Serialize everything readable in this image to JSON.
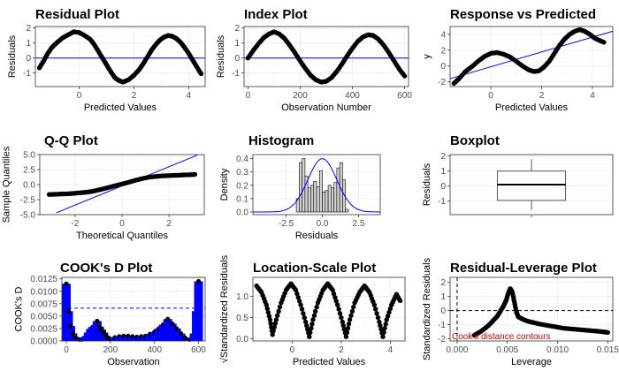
{
  "colors": {
    "points": "#000000",
    "ref_line": "#0000ff",
    "bar_fill": "#0000ff",
    "hist_fill": "#d3d3d3",
    "contour_text": "#cc0000",
    "grid_major": "#ebebeb",
    "grid_minor": "#f4f4f4",
    "panel_border": "#333333"
  },
  "chart_data": [
    {
      "id": "residual",
      "type": "scatter",
      "title": "Residual Plot",
      "xlabel": "Predicted Values",
      "ylabel": "Residuals",
      "xlim": [
        -1.6,
        4.6
      ],
      "ylim": [
        -1.9,
        2.1
      ],
      "xticks": [
        0,
        2,
        4
      ],
      "yticks": [
        -1,
        0,
        1,
        2
      ],
      "hline": 0,
      "grid": true,
      "points": [
        [
          -1.45,
          -0.65
        ],
        [
          -1.3,
          -0.2
        ],
        [
          -1.15,
          0.3
        ],
        [
          -1.0,
          0.7
        ],
        [
          -0.8,
          1.05
        ],
        [
          -0.6,
          1.35
        ],
        [
          -0.4,
          1.55
        ],
        [
          -0.2,
          1.75
        ],
        [
          0.0,
          1.7
        ],
        [
          0.2,
          1.5
        ],
        [
          0.4,
          1.25
        ],
        [
          0.55,
          0.9
        ],
        [
          0.7,
          0.45
        ],
        [
          0.85,
          0.0
        ],
        [
          1.0,
          -0.45
        ],
        [
          1.15,
          -0.9
        ],
        [
          1.3,
          -1.3
        ],
        [
          1.45,
          -1.5
        ],
        [
          1.6,
          -1.6
        ],
        [
          1.8,
          -1.45
        ],
        [
          2.0,
          -1.15
        ],
        [
          2.2,
          -0.75
        ],
        [
          2.35,
          -0.35
        ],
        [
          2.5,
          0.1
        ],
        [
          2.65,
          0.55
        ],
        [
          2.8,
          0.9
        ],
        [
          2.95,
          1.2
        ],
        [
          3.1,
          1.4
        ],
        [
          3.25,
          1.5
        ],
        [
          3.4,
          1.45
        ],
        [
          3.55,
          1.3
        ],
        [
          3.7,
          1.05
        ],
        [
          3.85,
          0.7
        ],
        [
          4.0,
          0.3
        ],
        [
          4.15,
          -0.15
        ],
        [
          4.3,
          -0.6
        ],
        [
          4.45,
          -1.05
        ]
      ]
    },
    {
      "id": "index",
      "type": "scatter",
      "title": "Index Plot",
      "xlabel": "Observation Number",
      "ylabel": "Residuals",
      "xlim": [
        -15,
        615
      ],
      "ylim": [
        -1.9,
        2.1
      ],
      "xticks": [
        0,
        200,
        400,
        600
      ],
      "yticks": [
        -1,
        0,
        1,
        2
      ],
      "hline": 0,
      "grid": true,
      "points": [
        [
          0,
          0.0
        ],
        [
          20,
          0.5
        ],
        [
          40,
          0.95
        ],
        [
          60,
          1.35
        ],
        [
          80,
          1.6
        ],
        [
          100,
          1.75
        ],
        [
          120,
          1.6
        ],
        [
          140,
          1.3
        ],
        [
          160,
          0.85
        ],
        [
          180,
          0.35
        ],
        [
          200,
          -0.2
        ],
        [
          220,
          -0.7
        ],
        [
          240,
          -1.15
        ],
        [
          260,
          -1.45
        ],
        [
          280,
          -1.6
        ],
        [
          300,
          -1.55
        ],
        [
          320,
          -1.3
        ],
        [
          340,
          -0.9
        ],
        [
          360,
          -0.4
        ],
        [
          380,
          0.15
        ],
        [
          400,
          0.65
        ],
        [
          420,
          1.1
        ],
        [
          440,
          1.4
        ],
        [
          460,
          1.55
        ],
        [
          480,
          1.5
        ],
        [
          500,
          1.25
        ],
        [
          520,
          0.85
        ],
        [
          540,
          0.35
        ],
        [
          560,
          -0.2
        ],
        [
          580,
          -0.75
        ],
        [
          600,
          -1.2
        ]
      ]
    },
    {
      "id": "response",
      "type": "scatter",
      "title": "Response vs Predicted",
      "xlabel": "Predicted Values",
      "ylabel": "y",
      "xlim": [
        -1.6,
        4.8
      ],
      "ylim": [
        -2.6,
        5.0
      ],
      "xticks": [
        0,
        2,
        4
      ],
      "yticks": [
        -2,
        0,
        2,
        4
      ],
      "refline": [
        [
          -1.6,
          -1.6
        ],
        [
          4.8,
          4.4
        ]
      ],
      "grid": true,
      "points": [
        [
          -1.45,
          -2.2
        ],
        [
          -1.25,
          -1.6
        ],
        [
          -1.0,
          -0.7
        ],
        [
          -0.75,
          -0.1
        ],
        [
          -0.5,
          0.6
        ],
        [
          -0.25,
          1.2
        ],
        [
          0.0,
          1.6
        ],
        [
          0.25,
          1.7
        ],
        [
          0.5,
          1.5
        ],
        [
          0.75,
          1.15
        ],
        [
          1.0,
          0.6
        ],
        [
          1.25,
          0.0
        ],
        [
          1.5,
          -0.5
        ],
        [
          1.7,
          -0.7
        ],
        [
          1.9,
          -0.6
        ],
        [
          2.1,
          -0.1
        ],
        [
          2.3,
          0.6
        ],
        [
          2.5,
          1.6
        ],
        [
          2.7,
          2.6
        ],
        [
          2.9,
          3.4
        ],
        [
          3.1,
          4.0
        ],
        [
          3.3,
          4.4
        ],
        [
          3.5,
          4.6
        ],
        [
          3.7,
          4.4
        ],
        [
          3.9,
          4.0
        ],
        [
          4.1,
          3.5
        ],
        [
          4.3,
          3.2
        ],
        [
          4.45,
          3.0
        ]
      ]
    },
    {
      "id": "qq",
      "type": "scatter",
      "title": "Q-Q Plot",
      "xlabel": "Theoretical Quantiles",
      "ylabel": "Sample Quantiles",
      "xlim": [
        -3.5,
        3.5
      ],
      "ylim": [
        -5.0,
        5.0
      ],
      "xticks": [
        -2,
        0,
        2
      ],
      "yticks": [
        -5.0,
        -2.5,
        0.0,
        2.5,
        5.0
      ],
      "ytick_labels": [
        "-5.0",
        "-2.5",
        "0.0",
        "2.5",
        "5.0"
      ],
      "refline": [
        [
          -2.8,
          -4.7
        ],
        [
          3.2,
          4.9
        ]
      ],
      "grid": true,
      "points": [
        [
          -3.1,
          -1.65
        ],
        [
          -2.8,
          -1.6
        ],
        [
          -2.5,
          -1.55
        ],
        [
          -2.2,
          -1.5
        ],
        [
          -1.9,
          -1.4
        ],
        [
          -1.6,
          -1.3
        ],
        [
          -1.3,
          -1.15
        ],
        [
          -1.0,
          -0.9
        ],
        [
          -0.7,
          -0.6
        ],
        [
          -0.4,
          -0.3
        ],
        [
          -0.1,
          0.0
        ],
        [
          0.2,
          0.3
        ],
        [
          0.5,
          0.65
        ],
        [
          0.8,
          0.95
        ],
        [
          1.1,
          1.2
        ],
        [
          1.4,
          1.35
        ],
        [
          1.7,
          1.45
        ],
        [
          2.0,
          1.5
        ],
        [
          2.3,
          1.55
        ],
        [
          2.6,
          1.6
        ],
        [
          2.9,
          1.65
        ],
        [
          3.1,
          1.7
        ]
      ]
    },
    {
      "id": "histogram",
      "type": "bar",
      "title": "Histogram",
      "xlabel": "Residuals",
      "ylabel": "Density",
      "xlim": [
        -4.8,
        4.0
      ],
      "ylim": [
        -0.02,
        0.43
      ],
      "xticks": [
        -2.5,
        0.0,
        2.5
      ],
      "xtick_labels": [
        "-2.5",
        "0.0",
        "2.5"
      ],
      "yticks": [
        0.0,
        0.1,
        0.2,
        0.3,
        0.4
      ],
      "ytick_labels": [
        "0.0",
        "0.1",
        "0.2",
        "0.3",
        "0.4"
      ],
      "bin_width": 0.2,
      "bin_left": [
        -1.8,
        -1.6,
        -1.4,
        -1.2,
        -1.0,
        -0.8,
        -0.6,
        -0.4,
        -0.2,
        0.0,
        0.2,
        0.4,
        0.6,
        0.8,
        1.0,
        1.2,
        1.4,
        1.6
      ],
      "values": [
        0.1,
        0.37,
        0.4,
        0.27,
        0.18,
        0.2,
        0.23,
        0.19,
        0.31,
        0.15,
        0.16,
        0.2,
        0.18,
        0.22,
        0.33,
        0.37,
        0.24,
        0.02
      ],
      "density_curve": {
        "mean": 0.0,
        "sd": 1.0
      },
      "grid": true
    },
    {
      "id": "boxplot",
      "type": "boxplot",
      "title": "Boxplot",
      "xlabel": "",
      "ylabel": "Residuals",
      "ylim": [
        -1.9,
        2.1
      ],
      "yticks": [
        -1,
        0,
        1,
        2
      ],
      "whisker_low": -1.6,
      "q1": -0.95,
      "median": 0.1,
      "q3": 1.0,
      "whisker_high": 1.8,
      "grid": true
    },
    {
      "id": "cooks",
      "type": "bar",
      "title": "COOK's D Plot",
      "xlabel": "Observation",
      "ylabel": "COOK's D",
      "xlim": [
        -20,
        630
      ],
      "ylim": [
        0,
        0.0128
      ],
      "xticks": [
        0,
        200,
        400,
        600
      ],
      "yticks": [
        0.0,
        0.0025,
        0.005,
        0.0075,
        0.01,
        0.0125
      ],
      "ytick_labels": [
        "0.0000",
        "0.0025",
        "0.0050",
        "0.0075",
        "0.0100",
        "0.0125"
      ],
      "threshold": 0.0066,
      "x": [
        0,
        10,
        20,
        30,
        40,
        50,
        60,
        70,
        80,
        90,
        100,
        110,
        120,
        130,
        140,
        150,
        160,
        170,
        180,
        190,
        200,
        220,
        240,
        260,
        280,
        300,
        320,
        340,
        360,
        380,
        400,
        420,
        440,
        460,
        480,
        500,
        520,
        540,
        560,
        580,
        590,
        600
      ],
      "values": [
        0.0115,
        0.006,
        0.003,
        0.0015,
        0.0006,
        0.0004,
        0.0003,
        0.0003,
        0.0005,
        0.001,
        0.0017,
        0.0024,
        0.0028,
        0.0031,
        0.004,
        0.0029,
        0.0023,
        0.0017,
        0.001,
        0.0006,
        0.0004,
        0.0007,
        0.0009,
        0.001,
        0.001,
        0.0009,
        0.0008,
        0.0009,
        0.001,
        0.0014,
        0.0018,
        0.0025,
        0.0033,
        0.0044,
        0.0035,
        0.0025,
        0.0015,
        0.0006,
        0.0003,
        0.0015,
        0.006,
        0.012
      ],
      "grid": true
    },
    {
      "id": "scale_location",
      "type": "scatter",
      "title": "Location-Scale Plot",
      "xlabel": "Predicted Values",
      "ylabel": "√Standardized Residuals",
      "xlim": [
        -1.6,
        4.6
      ],
      "ylim": [
        -0.05,
        1.45
      ],
      "xticks": [
        0,
        2,
        4
      ],
      "yticks": [
        0.0,
        0.5,
        1.0
      ],
      "ytick_labels": [
        "0.0",
        "0.5",
        "1.0"
      ],
      "grid": true,
      "points": [
        [
          -1.45,
          1.25
        ],
        [
          -1.25,
          1.1
        ],
        [
          -1.05,
          0.8
        ],
        [
          -0.9,
          0.45
        ],
        [
          -0.8,
          0.1
        ],
        [
          -0.65,
          0.45
        ],
        [
          -0.45,
          0.85
        ],
        [
          -0.25,
          1.15
        ],
        [
          -0.05,
          1.3
        ],
        [
          0.15,
          1.15
        ],
        [
          0.35,
          0.8
        ],
        [
          0.55,
          0.4
        ],
        [
          0.7,
          0.05
        ],
        [
          0.85,
          0.45
        ],
        [
          1.05,
          0.85
        ],
        [
          1.25,
          1.15
        ],
        [
          1.45,
          1.3
        ],
        [
          1.65,
          1.15
        ],
        [
          1.85,
          0.8
        ],
        [
          2.05,
          0.4
        ],
        [
          2.2,
          0.05
        ],
        [
          2.35,
          0.45
        ],
        [
          2.55,
          0.85
        ],
        [
          2.75,
          1.1
        ],
        [
          2.95,
          1.25
        ],
        [
          3.15,
          1.1
        ],
        [
          3.35,
          0.8
        ],
        [
          3.55,
          0.4
        ],
        [
          3.7,
          0.05
        ],
        [
          3.85,
          0.45
        ],
        [
          4.05,
          0.8
        ],
        [
          4.25,
          1.05
        ],
        [
          4.4,
          0.9
        ]
      ]
    },
    {
      "id": "residual_leverage",
      "type": "scatter",
      "title": "Residual-Leverage Plot",
      "xlabel": "Leverage",
      "ylabel": "Standardized Residuals",
      "xlim": [
        -0.0007,
        0.0155
      ],
      "ylim": [
        -2.15,
        2.35
      ],
      "xticks": [
        0.0,
        0.005,
        0.01,
        0.015
      ],
      "xtick_labels": [
        "0.000",
        "0.005",
        "0.010",
        "0.015"
      ],
      "yticks": [
        -2,
        -1,
        0,
        1,
        2
      ],
      "hline_dashed": 0,
      "vline_dashed": 0.0,
      "annotation": "Cook's distance contours",
      "grid": true,
      "points": [
        [
          0.0017,
          -1.75
        ],
        [
          0.0022,
          -1.55
        ],
        [
          0.0027,
          -1.3
        ],
        [
          0.0032,
          -1.0
        ],
        [
          0.0036,
          -0.7
        ],
        [
          0.004,
          -0.4
        ],
        [
          0.0043,
          -0.05
        ],
        [
          0.0046,
          0.3
        ],
        [
          0.0049,
          0.75
        ],
        [
          0.0051,
          1.25
        ],
        [
          0.0053,
          1.55
        ],
        [
          0.0055,
          1.3
        ],
        [
          0.0057,
          0.6
        ],
        [
          0.0059,
          -0.1
        ],
        [
          0.0061,
          -0.45
        ],
        [
          0.0065,
          -0.6
        ],
        [
          0.007,
          -0.75
        ],
        [
          0.0076,
          -0.85
        ],
        [
          0.0082,
          -0.95
        ],
        [
          0.009,
          -1.05
        ],
        [
          0.0098,
          -1.15
        ],
        [
          0.0106,
          -1.25
        ],
        [
          0.0114,
          -1.3
        ],
        [
          0.0122,
          -1.35
        ],
        [
          0.013,
          -1.4
        ],
        [
          0.0138,
          -1.45
        ],
        [
          0.0145,
          -1.5
        ],
        [
          0.015,
          -1.55
        ]
      ]
    }
  ]
}
